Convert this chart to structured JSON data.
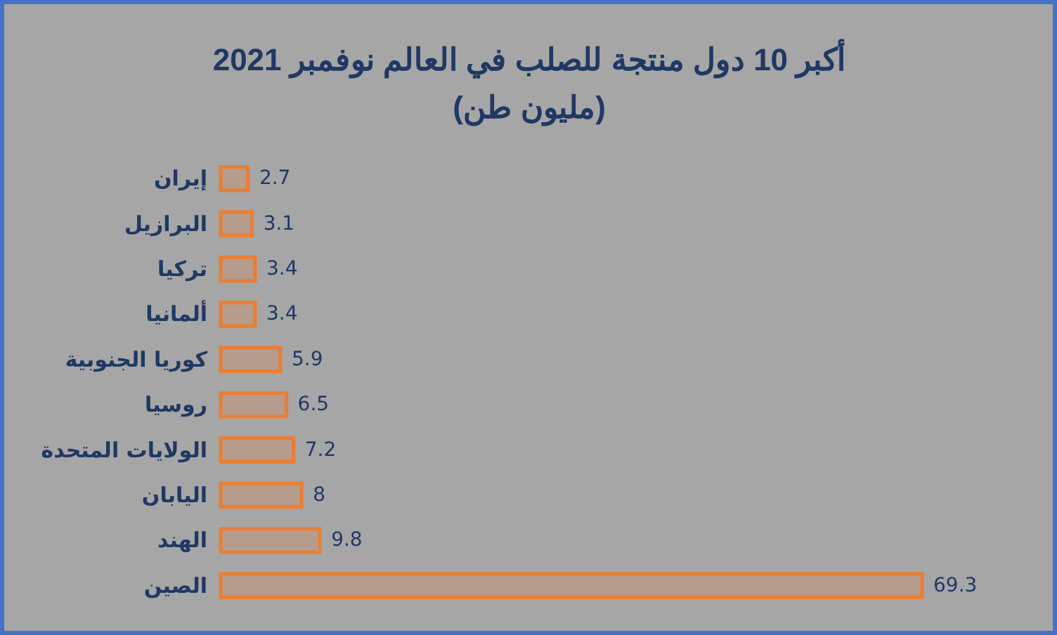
{
  "chart_data": {
    "type": "bar",
    "orientation": "horizontal",
    "title": "أكبر 10 دول منتجة للصلب في العالم نوفمبر 2021\n(مليون طن)",
    "categories": [
      "إيران",
      "البرازيل",
      "تركيا",
      "ألمانيا",
      "كوريا الجنوبية",
      "روسيا",
      "الولايات المتحدة",
      "اليابان",
      "الهند",
      "الصين"
    ],
    "values": [
      2.7,
      3.1,
      3.4,
      3.4,
      5.9,
      6.5,
      7.2,
      8,
      9.8,
      69.3
    ],
    "color": "#ed7d31",
    "data_labels": true
  }
}
